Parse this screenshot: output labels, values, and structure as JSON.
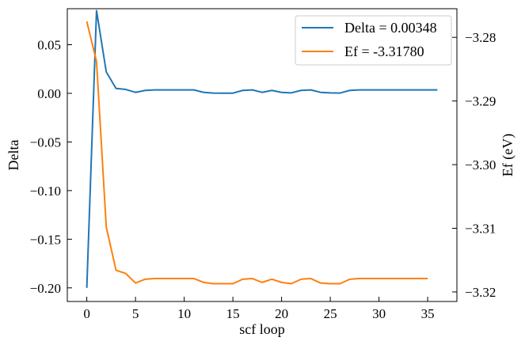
{
  "chart_data": {
    "type": "line",
    "xlabel": "scf loop",
    "ylabel_left": "Delta",
    "ylabel_right": "Ef (eV)",
    "xlim": [
      -2,
      38
    ],
    "ylim_left": [
      -0.214,
      0.087
    ],
    "ylim_right": [
      -3.3215,
      -3.2755
    ],
    "x_ticks": [
      0,
      5,
      10,
      15,
      20,
      25,
      30,
      35
    ],
    "y_ticks_left": [
      0.05,
      0.0,
      -0.05,
      -0.1,
      -0.15,
      -0.2
    ],
    "y_tick_labels_left": [
      "0.05",
      "0.00",
      "−0.05",
      "−0.10",
      "−0.15",
      "−0.20"
    ],
    "y_ticks_right": [
      -3.28,
      -3.29,
      -3.3,
      -3.31,
      -3.32
    ],
    "y_tick_labels_right": [
      "−3.28",
      "−3.29",
      "−3.30",
      "−3.31",
      "−3.32"
    ],
    "legend_position": "top-right",
    "grid": false,
    "series": [
      {
        "name": "Delta = 0.00348",
        "axis": "left",
        "color": "#1f77b4",
        "x": [
          0,
          1,
          2,
          3,
          4,
          5,
          6,
          7,
          8,
          9,
          10,
          11,
          12,
          13,
          14,
          15,
          16,
          17,
          18,
          19,
          20,
          21,
          22,
          23,
          24,
          25,
          26,
          27,
          28,
          29,
          30,
          31,
          32,
          33,
          34,
          35,
          36
        ],
        "y": [
          -0.2,
          0.085,
          0.022,
          0.005,
          0.004,
          0.001,
          0.003,
          0.0035,
          0.0035,
          0.0035,
          0.0035,
          0.0035,
          0.001,
          0.0003,
          0.0002,
          0.0002,
          0.003,
          0.0035,
          0.001,
          0.003,
          0.001,
          0.0005,
          0.003,
          0.0035,
          0.001,
          0.0005,
          0.0003,
          0.003,
          0.0035,
          0.0035,
          0.0035,
          0.0035,
          0.0035,
          0.0035,
          0.0035,
          0.0035,
          0.0035
        ]
      },
      {
        "name": "Ef = -3.31780",
        "axis": "right",
        "color": "#ff7f0e",
        "x": [
          0,
          1,
          2,
          3,
          4,
          5,
          6,
          7,
          8,
          9,
          10,
          11,
          12,
          13,
          14,
          15,
          16,
          17,
          18,
          19,
          20,
          21,
          22,
          23,
          24,
          25,
          26,
          27,
          28,
          29,
          30,
          31,
          32,
          33,
          34,
          35
        ],
        "y": [
          -3.2775,
          -3.2838,
          -3.3098,
          -3.3166,
          -3.3171,
          -3.3186,
          -3.318,
          -3.3179,
          -3.3179,
          -3.3179,
          -3.3179,
          -3.3179,
          -3.3185,
          -3.3187,
          -3.3187,
          -3.3187,
          -3.318,
          -3.3179,
          -3.3185,
          -3.318,
          -3.3185,
          -3.3187,
          -3.318,
          -3.3179,
          -3.3186,
          -3.3187,
          -3.3187,
          -3.318,
          -3.3179,
          -3.3179,
          -3.3179,
          -3.3179,
          -3.3179,
          -3.3179,
          -3.3179,
          -3.3179
        ]
      }
    ]
  }
}
